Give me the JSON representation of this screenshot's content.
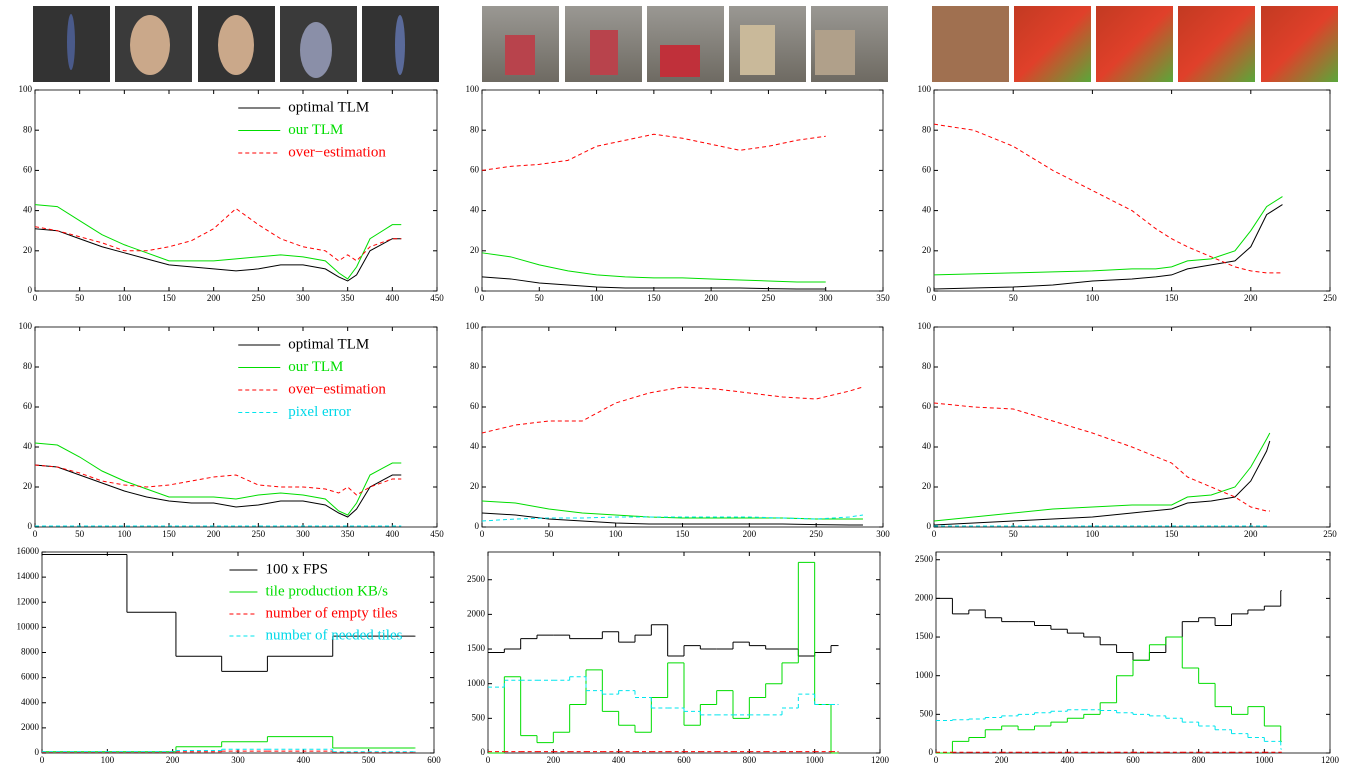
{
  "chart_data": [
    {
      "type": "line",
      "xlim": [
        0,
        450
      ],
      "ylim": [
        0,
        100
      ],
      "xticks": [
        0,
        50,
        100,
        150,
        200,
        250,
        300,
        350,
        400,
        450
      ],
      "yticks": [
        0,
        20,
        40,
        60,
        80,
        100
      ],
      "legend": "upper right",
      "x": [
        0,
        25,
        50,
        75,
        100,
        125,
        150,
        175,
        200,
        225,
        250,
        275,
        300,
        325,
        340,
        350,
        360,
        375,
        400,
        410
      ],
      "series": [
        {
          "name": "optimal TLM",
          "color": "#000000",
          "dash": false,
          "values": [
            31,
            30,
            26,
            22,
            19,
            16,
            13,
            12,
            11,
            10,
            11,
            13,
            13,
            11,
            7,
            5,
            8,
            20,
            26,
            26
          ]
        },
        {
          "name": "our TLM",
          "color": "#00dd00",
          "dash": false,
          "values": [
            43,
            42,
            35,
            28,
            23,
            19,
            15,
            15,
            15,
            16,
            17,
            18,
            17,
            15,
            9,
            6,
            12,
            26,
            33,
            33
          ]
        },
        {
          "name": "over−estimation",
          "color": "#ff0000",
          "dash": true,
          "values": [
            32,
            30,
            27,
            24,
            20,
            20,
            22,
            25,
            31,
            41,
            33,
            26,
            22,
            20,
            15,
            18,
            15,
            22,
            26,
            26
          ]
        }
      ]
    },
    {
      "type": "line",
      "xlim": [
        0,
        350
      ],
      "ylim": [
        0,
        100
      ],
      "xticks": [
        0,
        50,
        100,
        150,
        200,
        250,
        300,
        350
      ],
      "yticks": [
        0,
        20,
        40,
        60,
        80,
        100
      ],
      "x": [
        0,
        25,
        50,
        75,
        100,
        125,
        150,
        175,
        200,
        225,
        250,
        275,
        300
      ],
      "series": [
        {
          "color": "#000000",
          "dash": false,
          "values": [
            7,
            6,
            4,
            3,
            2,
            1.5,
            1.5,
            1.5,
            1.5,
            1.5,
            1.2,
            1,
            1
          ]
        },
        {
          "color": "#00dd00",
          "dash": false,
          "values": [
            19,
            17,
            13,
            10,
            8,
            7,
            6.5,
            6.5,
            6,
            5.5,
            5,
            4.5,
            4.5
          ]
        },
        {
          "color": "#ff0000",
          "dash": true,
          "values": [
            60,
            62,
            63,
            65,
            72,
            75,
            78,
            76,
            73,
            70,
            72,
            75,
            77
          ]
        }
      ]
    },
    {
      "type": "line",
      "xlim": [
        0,
        250
      ],
      "ylim": [
        0,
        100
      ],
      "xticks": [
        0,
        50,
        100,
        150,
        200,
        250
      ],
      "yticks": [
        0,
        20,
        40,
        60,
        80,
        100
      ],
      "x": [
        0,
        25,
        50,
        75,
        100,
        125,
        140,
        150,
        160,
        175,
        190,
        200,
        210,
        220
      ],
      "series": [
        {
          "color": "#000000",
          "dash": false,
          "values": [
            1,
            1.5,
            2,
            3,
            5,
            6,
            7,
            8,
            11,
            13,
            15,
            22,
            38,
            43
          ]
        },
        {
          "color": "#00dd00",
          "dash": false,
          "values": [
            8,
            8.5,
            9,
            9.5,
            10,
            11,
            11,
            12,
            15,
            16,
            20,
            30,
            42,
            47
          ]
        },
        {
          "color": "#ff0000",
          "dash": true,
          "values": [
            83,
            80,
            72,
            60,
            50,
            40,
            31,
            26,
            22,
            17,
            12,
            10,
            9,
            9
          ]
        }
      ]
    },
    {
      "type": "line",
      "xlim": [
        0,
        450
      ],
      "ylim": [
        0,
        100
      ],
      "xticks": [
        0,
        50,
        100,
        150,
        200,
        250,
        300,
        350,
        400,
        450
      ],
      "yticks": [
        0,
        20,
        40,
        60,
        80,
        100
      ],
      "legend": "upper right",
      "x": [
        0,
        25,
        50,
        75,
        100,
        125,
        150,
        175,
        200,
        225,
        250,
        275,
        300,
        325,
        340,
        350,
        360,
        375,
        400,
        410
      ],
      "series": [
        {
          "name": "optimal TLM",
          "color": "#000000",
          "dash": false,
          "values": [
            31,
            30,
            26,
            22,
            18,
            15,
            13,
            12,
            12,
            10,
            11,
            13,
            13,
            11,
            7,
            5,
            9,
            20,
            26,
            26
          ]
        },
        {
          "name": "our TLM",
          "color": "#00dd00",
          "dash": false,
          "values": [
            42,
            41,
            35,
            28,
            23,
            19,
            15,
            15,
            15,
            14,
            16,
            17,
            16,
            14,
            8,
            6,
            12,
            26,
            32,
            32
          ]
        },
        {
          "name": "over−estimation",
          "color": "#ff0000",
          "dash": true,
          "values": [
            31,
            30,
            27,
            23,
            21,
            20,
            21,
            23,
            25,
            26,
            21,
            20,
            20,
            19,
            17,
            20,
            16,
            20,
            24,
            24
          ]
        },
        {
          "name": "pixel error",
          "color": "#00e5ee",
          "dash": true,
          "values": [
            0.5,
            0.5,
            0.5,
            0.5,
            0.5,
            0.5,
            0.5,
            0.5,
            0.5,
            0.5,
            0.5,
            0.5,
            0.5,
            0.5,
            0.5,
            0.5,
            0.5,
            0.5,
            0.5,
            0.5
          ]
        }
      ]
    },
    {
      "type": "line",
      "xlim": [
        0,
        300
      ],
      "ylim": [
        0,
        100
      ],
      "xticks": [
        0,
        50,
        100,
        150,
        200,
        250,
        300
      ],
      "yticks": [
        0,
        20,
        40,
        60,
        80,
        100
      ],
      "x": [
        0,
        25,
        50,
        75,
        100,
        125,
        150,
        175,
        200,
        225,
        250,
        275,
        285
      ],
      "series": [
        {
          "color": "#000000",
          "dash": false,
          "values": [
            7,
            6,
            4,
            3,
            2,
            1.5,
            1.5,
            1.5,
            1.5,
            1.5,
            1.2,
            1,
            1
          ]
        },
        {
          "color": "#00dd00",
          "dash": false,
          "values": [
            13,
            12,
            9,
            7,
            6,
            5,
            4.5,
            4.5,
            4.5,
            4.5,
            4,
            4,
            4
          ]
        },
        {
          "color": "#ff0000",
          "dash": true,
          "values": [
            47,
            51,
            53,
            53,
            62,
            67,
            70,
            69,
            67,
            65,
            64,
            68,
            70
          ]
        },
        {
          "color": "#00e5ee",
          "dash": true,
          "values": [
            3,
            4,
            4.5,
            4.5,
            5,
            5,
            5,
            5,
            5,
            4.5,
            4,
            5,
            6
          ]
        }
      ]
    },
    {
      "type": "line",
      "xlim": [
        0,
        250
      ],
      "ylim": [
        0,
        100
      ],
      "xticks": [
        0,
        50,
        100,
        150,
        200,
        250
      ],
      "yticks": [
        0,
        20,
        40,
        60,
        80,
        100
      ],
      "x": [
        0,
        25,
        50,
        75,
        100,
        125,
        150,
        160,
        175,
        190,
        200,
        210,
        212
      ],
      "series": [
        {
          "color": "#000000",
          "dash": false,
          "values": [
            1,
            2,
            3,
            4,
            5,
            7,
            9,
            12,
            13,
            15,
            23,
            38,
            43
          ]
        },
        {
          "color": "#00dd00",
          "dash": false,
          "values": [
            3,
            5,
            7,
            9,
            10,
            11,
            11,
            15,
            16,
            20,
            30,
            44,
            47
          ]
        },
        {
          "color": "#ff0000",
          "dash": true,
          "values": [
            62,
            60,
            59,
            53,
            47,
            40,
            32,
            25,
            20,
            15,
            10,
            8,
            8
          ]
        },
        {
          "color": "#00e5ee",
          "dash": true,
          "values": [
            0.5,
            0.5,
            0.5,
            0.5,
            0.5,
            0.5,
            0.5,
            0.5,
            0.5,
            0.5,
            0.5,
            0.5,
            0.5
          ]
        }
      ]
    },
    {
      "type": "step",
      "xlim": [
        0,
        600
      ],
      "ylim": [
        0,
        16000
      ],
      "xticks": [
        0,
        100,
        200,
        300,
        400,
        500,
        600
      ],
      "yticks": [
        0,
        2000,
        4000,
        6000,
        8000,
        10000,
        12000,
        14000,
        16000
      ],
      "legend": "upper right",
      "x": [
        0,
        130,
        205,
        275,
        345,
        445,
        570
      ],
      "series": [
        {
          "name": "100 x FPS",
          "color": "#000000",
          "dash": false,
          "values": [
            15800,
            11200,
            7700,
            6500,
            7700,
            9300,
            9300
          ]
        },
        {
          "name": "tile production KB/s",
          "color": "#00dd00",
          "dash": false,
          "values": [
            100,
            100,
            500,
            900,
            1300,
            400,
            400
          ]
        },
        {
          "name": "number of empty tiles",
          "color": "#ff0000",
          "dash": true,
          "values": [
            50,
            50,
            100,
            150,
            150,
            50,
            50
          ]
        },
        {
          "name": "number of needed tiles",
          "color": "#00e5ee",
          "dash": true,
          "values": [
            100,
            100,
            200,
            300,
            300,
            100,
            100
          ]
        }
      ]
    },
    {
      "type": "step",
      "xlim": [
        0,
        1200
      ],
      "ylim": [
        0,
        2900
      ],
      "xticks": [
        0,
        200,
        400,
        600,
        800,
        1000,
        1200
      ],
      "yticks": [
        0,
        500,
        1000,
        1500,
        2000,
        2500
      ],
      "x": [
        0,
        50,
        100,
        150,
        200,
        250,
        300,
        350,
        400,
        450,
        500,
        550,
        600,
        650,
        700,
        750,
        800,
        850,
        900,
        950,
        1000,
        1050,
        1070
      ],
      "series": [
        {
          "color": "#000000",
          "dash": false,
          "values": [
            1450,
            1500,
            1650,
            1700,
            1700,
            1650,
            1650,
            1750,
            1600,
            1700,
            1850,
            1400,
            1550,
            1500,
            1500,
            1600,
            1550,
            1500,
            1500,
            1400,
            1450,
            1550,
            1550
          ]
        },
        {
          "color": "#00dd00",
          "dash": false,
          "values": [
            0,
            1100,
            250,
            150,
            300,
            700,
            1200,
            600,
            400,
            300,
            800,
            1300,
            400,
            700,
            900,
            500,
            800,
            1000,
            1300,
            2750,
            700,
            0,
            0
          ]
        },
        {
          "color": "#ff0000",
          "dash": true,
          "values": [
            20,
            20,
            20,
            20,
            20,
            20,
            20,
            20,
            20,
            20,
            20,
            20,
            20,
            20,
            20,
            20,
            20,
            20,
            20,
            20,
            20,
            20,
            20
          ]
        },
        {
          "color": "#00e5ee",
          "dash": true,
          "values": [
            950,
            1050,
            1050,
            1050,
            1050,
            1100,
            900,
            850,
            900,
            800,
            650,
            650,
            600,
            550,
            550,
            550,
            550,
            550,
            650,
            850,
            700,
            700,
            700
          ]
        }
      ]
    },
    {
      "type": "step",
      "xlim": [
        0,
        1200
      ],
      "ylim": [
        0,
        2600
      ],
      "xticks": [
        0,
        200,
        400,
        600,
        800,
        1000,
        1200
      ],
      "yticks": [
        0,
        500,
        1000,
        1500,
        2000,
        2500
      ],
      "x": [
        0,
        50,
        100,
        150,
        200,
        250,
        300,
        350,
        400,
        450,
        500,
        550,
        600,
        650,
        700,
        750,
        800,
        850,
        900,
        950,
        1000,
        1050
      ],
      "series": [
        {
          "color": "#000000",
          "dash": false,
          "values": [
            2000,
            1800,
            1850,
            1750,
            1700,
            1700,
            1650,
            1600,
            1550,
            1500,
            1400,
            1300,
            1200,
            1300,
            1500,
            1700,
            1750,
            1650,
            1800,
            1850,
            1900,
            2100
          ]
        },
        {
          "color": "#00dd00",
          "dash": false,
          "values": [
            0,
            150,
            200,
            300,
            350,
            300,
            350,
            400,
            450,
            500,
            650,
            1000,
            1200,
            1400,
            1500,
            1100,
            900,
            600,
            500,
            600,
            350,
            150
          ]
        },
        {
          "color": "#ff0000",
          "dash": true,
          "values": [
            10,
            10,
            10,
            10,
            10,
            10,
            10,
            10,
            10,
            10,
            10,
            10,
            10,
            10,
            10,
            10,
            10,
            10,
            10,
            10,
            10,
            10
          ]
        },
        {
          "color": "#00e5ee",
          "dash": true,
          "values": [
            420,
            430,
            440,
            460,
            480,
            500,
            520,
            540,
            560,
            560,
            550,
            520,
            500,
            480,
            450,
            400,
            350,
            300,
            250,
            200,
            150,
            50
          ]
        }
      ]
    }
  ]
}
